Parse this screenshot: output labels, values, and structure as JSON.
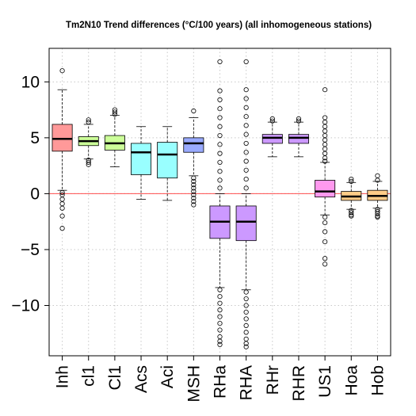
{
  "chart_data": {
    "type": "box",
    "title": "Tm2N10 Trend differences (°C/100 years) (all inhomogeneous stations)",
    "xlabel": "",
    "ylabel": "",
    "ylim": [
      -14.5,
      13
    ],
    "yticks": [
      -10,
      -5,
      0,
      5,
      10
    ],
    "ytick_labels": [
      "−10",
      "−5",
      "0",
      "5",
      "10"
    ],
    "grid": true,
    "reference_line": {
      "y": 0,
      "color": "#ff4d4d"
    },
    "categories": [
      "Inh",
      "cl1",
      "Cl1",
      "Acs",
      "Aci",
      "MSH",
      "RHa",
      "RHA",
      "RHr",
      "RHR",
      "US1",
      "Hoa",
      "Hob"
    ],
    "colors": [
      "#ff9999",
      "#ccff99",
      "#ccff99",
      "#99ffff",
      "#99ffff",
      "#99aaff",
      "#cc99ff",
      "#cc99ff",
      "#cc99ff",
      "#cc99ff",
      "#ff99ee",
      "#ffcc88",
      "#ffcc88"
    ],
    "boxes": [
      {
        "label": "Inh",
        "whisker_low": 0.3,
        "q1": 3.8,
        "median": 4.9,
        "q3": 6.2,
        "whisker_high": 9.3,
        "outliers": [
          11.0,
          0.1,
          -0.1,
          -0.5,
          -0.9,
          -1.3,
          -2.0,
          -3.1
        ]
      },
      {
        "label": "cl1",
        "whisker_low": 3.1,
        "q1": 4.3,
        "median": 4.7,
        "q3": 5.1,
        "whisker_high": 6.2,
        "outliers": [
          6.4,
          6.6,
          3.0,
          2.8,
          2.6
        ]
      },
      {
        "label": "Cl1",
        "whisker_low": 2.4,
        "q1": 3.9,
        "median": 4.5,
        "q3": 5.2,
        "whisker_high": 7.0,
        "outliers": [
          7.1,
          7.3,
          7.5
        ]
      },
      {
        "label": "Acs",
        "whisker_low": -0.5,
        "q1": 1.7,
        "median": 3.7,
        "q3": 4.5,
        "whisker_high": 6.0,
        "outliers": []
      },
      {
        "label": "Aci",
        "whisker_low": -0.6,
        "q1": 1.4,
        "median": 3.5,
        "q3": 4.6,
        "whisker_high": 6.0,
        "outliers": []
      },
      {
        "label": "MSH",
        "whisker_low": 1.6,
        "q1": 3.7,
        "median": 4.5,
        "q3": 5.0,
        "whisker_high": 6.8,
        "outliers": [
          7.4,
          1.4,
          1.1,
          0.8,
          0.5,
          0.2,
          -0.1,
          -0.4,
          -0.7,
          -1.0
        ]
      },
      {
        "label": "RHa",
        "whisker_low": -8.4,
        "q1": -4.0,
        "median": -2.5,
        "q3": -1.1,
        "whisker_high": 0.0,
        "outliers": [
          11.8,
          9.2,
          8.4,
          7.6,
          6.8,
          6.0,
          5.2,
          4.4,
          3.6,
          2.8,
          2.0,
          1.2,
          0.5,
          -8.6,
          -9.2,
          -9.8,
          -10.4,
          -11.0,
          -11.6,
          -12.2,
          -12.8,
          -13.2,
          -13.5
        ]
      },
      {
        "label": "RHA",
        "whisker_low": -8.6,
        "q1": -4.2,
        "median": -2.5,
        "q3": -1.1,
        "whisker_high": 0.0,
        "outliers": [
          11.8,
          9.3,
          8.5,
          7.7,
          6.9,
          6.1,
          5.3,
          4.5,
          3.7,
          2.9,
          2.1,
          1.3,
          0.5,
          -8.8,
          -9.4,
          -10.0,
          -10.6,
          -11.2,
          -11.8,
          -12.4,
          -13.0,
          -13.4,
          -13.7
        ]
      },
      {
        "label": "RHr",
        "whisker_low": 3.3,
        "q1": 4.5,
        "median": 5.0,
        "q3": 5.3,
        "whisker_high": 6.4,
        "outliers": [
          6.5,
          6.7
        ]
      },
      {
        "label": "RHR",
        "whisker_low": 3.3,
        "q1": 4.5,
        "median": 5.0,
        "q3": 5.3,
        "whisker_high": 6.4,
        "outliers": [
          6.5,
          6.7
        ]
      },
      {
        "label": "US1",
        "whisker_low": -1.9,
        "q1": -0.3,
        "median": 0.2,
        "q3": 1.2,
        "whisker_high": 2.8,
        "outliers": [
          9.3,
          6.8,
          6.4,
          6.0,
          5.6,
          5.2,
          4.8,
          4.4,
          4.0,
          3.6,
          3.2,
          2.9,
          -2.1,
          -2.6,
          -3.4,
          -4.3,
          -5.8,
          -6.3
        ]
      },
      {
        "label": "Hoa",
        "whisker_low": -1.4,
        "q1": -0.6,
        "median": -0.25,
        "q3": 0.2,
        "whisker_high": 1.0,
        "outliers": [
          1.3,
          1.1,
          -1.5,
          -1.7,
          -1.9,
          -2.0
        ]
      },
      {
        "label": "Hob",
        "whisker_low": -1.3,
        "q1": -0.6,
        "median": -0.2,
        "q3": 0.3,
        "whisker_high": 1.1,
        "outliers": [
          1.6,
          1.2,
          -1.4,
          -1.6,
          -1.8,
          -2.0,
          -2.1
        ]
      }
    ]
  }
}
